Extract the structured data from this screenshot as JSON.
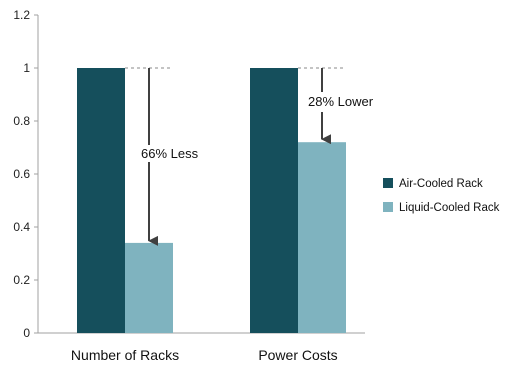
{
  "chart_data": {
    "type": "bar",
    "categories": [
      "Number of Racks",
      "Power Costs"
    ],
    "series": [
      {
        "name": "Air-Cooled Rack",
        "values": [
          1.0,
          1.0
        ],
        "color": "#154f5c"
      },
      {
        "name": "Liquid-Cooled Rack",
        "values": [
          0.34,
          0.72
        ],
        "color": "#7fb3bf"
      }
    ],
    "ylim": [
      0,
      1.2
    ],
    "yticks": [
      "0",
      "0.2",
      "0.4",
      "0.6",
      "0.8",
      "1",
      "1.2"
    ],
    "grid": false,
    "legend_position": "right",
    "annotations": [
      {
        "category": "Number of Racks",
        "text": "66% Less",
        "from": 1.0,
        "to": 0.34
      },
      {
        "category": "Power Costs",
        "text": "28% Lower",
        "from": 1.0,
        "to": 0.72
      }
    ]
  }
}
